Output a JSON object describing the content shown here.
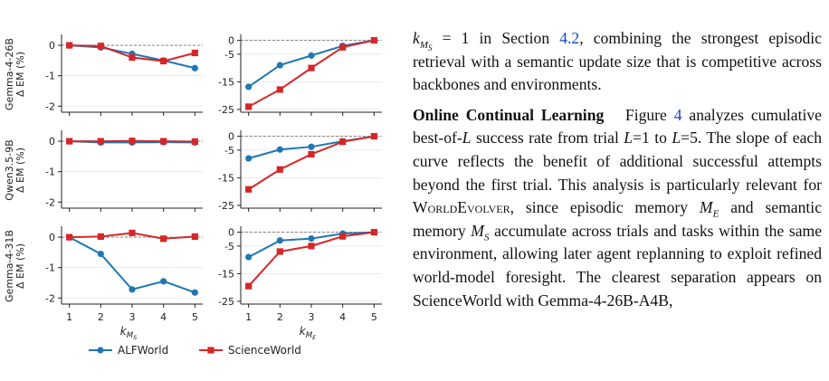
{
  "chart_data": {
    "type": "line",
    "rows": [
      {
        "ylabel": "Gemma-4-26B\nΔ EM (%)",
        "panels": [
          {
            "x": [
              1,
              2,
              3,
              4,
              5
            ],
            "xlabel": "k_{M_S}",
            "ylim": [
              -2.2,
              0.3
            ],
            "yticks": [
              0,
              -1,
              -2
            ],
            "series": [
              {
                "name": "ALFWorld",
                "values": [
                  0.0,
                  -0.07,
                  -0.28,
                  -0.5,
                  -0.75
                ]
              },
              {
                "name": "ScienceWorld",
                "values": [
                  0.0,
                  -0.02,
                  -0.4,
                  -0.52,
                  -0.25
                ]
              }
            ]
          },
          {
            "x": [
              1,
              2,
              3,
              4,
              5
            ],
            "xlabel": "k_{M_E}",
            "ylim": [
              -26,
              1.5
            ],
            "yticks": [
              0,
              -5,
              -15,
              -25
            ],
            "series": [
              {
                "name": "ALFWorld",
                "values": [
                  -16.8,
                  -9.0,
                  -5.5,
                  -2.0,
                  0.0
                ]
              },
              {
                "name": "ScienceWorld",
                "values": [
                  -24.0,
                  -17.8,
                  -10.0,
                  -2.5,
                  0.0
                ]
              }
            ]
          }
        ]
      },
      {
        "ylabel": "Qwen3.5-9B\nΔ EM (%)",
        "panels": [
          {
            "x": [
              1,
              2,
              3,
              4,
              5
            ],
            "xlabel": "k_{M_S}",
            "ylim": [
              -2.2,
              0.3
            ],
            "yticks": [
              0,
              -1,
              -2
            ],
            "series": [
              {
                "name": "ALFWorld",
                "values": [
                  0.0,
                  -0.04,
                  -0.04,
                  -0.03,
                  -0.04
                ]
              },
              {
                "name": "ScienceWorld",
                "values": [
                  0.0,
                  0.0,
                  0.01,
                  0.0,
                  -0.01
                ]
              }
            ]
          },
          {
            "x": [
              1,
              2,
              3,
              4,
              5
            ],
            "xlabel": "k_{M_E}",
            "ylim": [
              -26,
              1.5
            ],
            "yticks": [
              0,
              -5,
              -15,
              -25
            ],
            "series": [
              {
                "name": "ALFWorld",
                "values": [
                  -8.0,
                  -4.8,
                  -3.8,
                  -1.8,
                  0.0
                ]
              },
              {
                "name": "ScienceWorld",
                "values": [
                  -19.2,
                  -12.0,
                  -6.5,
                  -2.0,
                  0.0
                ]
              }
            ]
          }
        ]
      },
      {
        "ylabel": "Gemma-4-31B\nΔ EM (%)",
        "panels": [
          {
            "x": [
              1,
              2,
              3,
              4,
              5
            ],
            "xlabel": "k_{M_S}",
            "ylim": [
              -2.2,
              0.3
            ],
            "yticks": [
              0,
              -1,
              -2
            ],
            "series": [
              {
                "name": "ALFWorld",
                "values": [
                  0.0,
                  -0.55,
                  -1.72,
                  -1.45,
                  -1.82
                ]
              },
              {
                "name": "ScienceWorld",
                "values": [
                  0.0,
                  0.02,
                  0.14,
                  -0.05,
                  0.02
                ]
              }
            ]
          },
          {
            "x": [
              1,
              2,
              3,
              4,
              5
            ],
            "xlabel": "k_{M_E}",
            "ylim": [
              -26,
              1.5
            ],
            "yticks": [
              0,
              -5,
              -15,
              -25
            ],
            "series": [
              {
                "name": "ALFWorld",
                "values": [
                  -9.0,
                  -3.0,
                  -2.3,
                  -0.5,
                  0.0
                ]
              },
              {
                "name": "ScienceWorld",
                "values": [
                  -19.5,
                  -7.0,
                  -5.0,
                  -1.5,
                  0.0
                ]
              }
            ]
          }
        ]
      }
    ],
    "xticks": [
      1,
      2,
      3,
      4,
      5
    ],
    "legend": {
      "placement": "bottom",
      "entries": [
        "ALFWorld",
        "ScienceWorld"
      ]
    },
    "grid": "horizontal",
    "reference_line": 0
  },
  "colors": {
    "alfworld": "#1f77b4",
    "scienceworld": "#d62728"
  },
  "text": {
    "p1_a": " = 1 in Section ",
    "p1_ref": "4.2",
    "p1_b": ", combining the strongest episodic retrieval with a semantic update size that is competitive across backbones and environments.",
    "p2_head": "Online Continual Learning",
    "p2_a": "Figure ",
    "p2_ref": "4",
    "p2_b": " analyzes cumulative best-of-",
    "p2_c": " success rate from trial ",
    "p2_d": "=1 to ",
    "p2_e": "=5.  The slope of each curve reflects the benefit of additional successful attempts beyond the first trial.  This analysis is particularly relevant for ",
    "p2_sc": "WorldEvolver",
    "p2_f": ", since episodic memory ",
    "p2_g": " and semantic memory ",
    "p2_h": " accumulate across trials and tasks within the same environment, allowing later agent replanning to exploit refined world-model foresight. The clearest separation appears on ScienceWorld with Gemma-4-26B-A4B,"
  }
}
